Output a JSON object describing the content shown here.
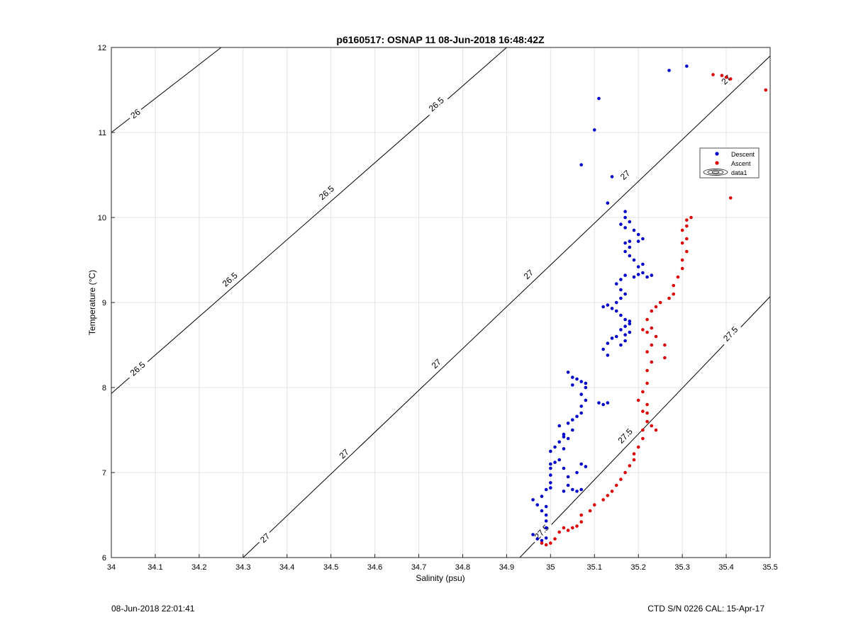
{
  "footer": {
    "left": "08-Jun-2018 22:01:41",
    "right": "CTD S/N 0226  CAL: 15-Apr-17"
  },
  "chart_data": {
    "type": "scatter",
    "title": "p6160517: OSNAP 11 08-Jun-2018 16:48:42Z",
    "xlabel": "Salinity (psu)",
    "ylabel": "Temperature (°C)",
    "xlim": [
      34,
      35.5
    ],
    "ylim": [
      6,
      12
    ],
    "xticks": [
      34,
      34.1,
      34.2,
      34.3,
      34.4,
      34.5,
      34.6,
      34.7,
      34.8,
      34.9,
      35,
      35.1,
      35.2,
      35.3,
      35.4,
      35.5
    ],
    "xtick_labels": [
      "34",
      "34.1",
      "34.2",
      "34.3",
      "34.4",
      "34.5",
      "34.6",
      "34.7",
      "34.8",
      "34.9",
      "35",
      "35.1",
      "35.2",
      "35.3",
      "35.4",
      "35.5"
    ],
    "yticks": [
      6,
      7,
      8,
      9,
      10,
      11,
      12
    ],
    "ytick_labels": [
      "6",
      "7",
      "8",
      "9",
      "10",
      "11",
      "12"
    ],
    "grid": true,
    "legend_position": "top-right",
    "legend": [
      {
        "label": "Descent",
        "color": "#0000cc",
        "marker": "dot"
      },
      {
        "label": "Ascent",
        "color": "#dd0000",
        "marker": "dot"
      },
      {
        "label": "data1",
        "color": "#000000",
        "marker": "contour"
      }
    ],
    "contours": [
      {
        "level": "26",
        "points": [
          [
            34.0,
            11.0
          ],
          [
            34.25,
            12.0
          ]
        ],
        "labels": [
          [
            34.055,
            11.22
          ]
        ]
      },
      {
        "level": "26.5",
        "points": [
          [
            34.0,
            7.93
          ],
          [
            34.9,
            12.0
          ]
        ],
        "labels": [
          [
            34.06,
            8.22
          ],
          [
            34.27,
            9.27
          ],
          [
            34.49,
            10.29
          ],
          [
            34.74,
            11.33
          ]
        ]
      },
      {
        "level": "27",
        "points": [
          [
            34.3,
            6.0
          ],
          [
            35.5,
            11.9
          ]
        ],
        "labels": [
          [
            34.35,
            6.23
          ],
          [
            34.53,
            7.22
          ],
          [
            34.74,
            8.28
          ],
          [
            34.95,
            9.33
          ],
          [
            35.17,
            10.5
          ],
          [
            35.4,
            11.62
          ]
        ]
      },
      {
        "level": "27.5",
        "points": [
          [
            34.93,
            6.0
          ],
          [
            35.5,
            9.07
          ]
        ],
        "labels": [
          [
            34.98,
            6.3
          ],
          [
            35.17,
            7.43
          ],
          [
            35.41,
            8.63
          ]
        ]
      }
    ],
    "series": [
      {
        "name": "Descent",
        "color": "#0000cc",
        "points": [
          [
            34.96,
            6.27
          ],
          [
            34.97,
            6.22
          ],
          [
            34.98,
            6.2
          ],
          [
            34.99,
            6.23
          ],
          [
            34.99,
            6.35
          ],
          [
            34.99,
            6.5
          ],
          [
            34.99,
            6.43
          ],
          [
            34.96,
            6.68
          ],
          [
            34.97,
            6.62
          ],
          [
            34.98,
            6.55
          ],
          [
            34.99,
            6.6
          ],
          [
            34.98,
            6.72
          ],
          [
            34.99,
            6.8
          ],
          [
            35.0,
            6.82
          ],
          [
            35.0,
            6.88
          ],
          [
            35.0,
            6.97
          ],
          [
            35.0,
            7.05
          ],
          [
            35.0,
            7.1
          ],
          [
            35.01,
            7.12
          ],
          [
            35.0,
            7.25
          ],
          [
            35.01,
            7.3
          ],
          [
            35.02,
            7.36
          ],
          [
            35.03,
            7.42
          ],
          [
            35.02,
            7.55
          ],
          [
            35.03,
            7.45
          ],
          [
            35.04,
            7.4
          ],
          [
            35.03,
            7.28
          ],
          [
            35.02,
            7.15
          ],
          [
            35.03,
            7.05
          ],
          [
            35.04,
            6.85
          ],
          [
            35.03,
            6.78
          ],
          [
            35.05,
            6.8
          ],
          [
            35.06,
            6.78
          ],
          [
            35.07,
            6.8
          ],
          [
            35.04,
            6.95
          ],
          [
            35.06,
            7.0
          ],
          [
            35.07,
            7.1
          ],
          [
            35.08,
            7.07
          ],
          [
            35.05,
            7.5
          ],
          [
            35.04,
            7.58
          ],
          [
            35.05,
            7.62
          ],
          [
            35.06,
            7.66
          ],
          [
            35.07,
            7.7
          ],
          [
            35.07,
            7.78
          ],
          [
            35.08,
            7.85
          ],
          [
            35.07,
            7.92
          ],
          [
            35.08,
            8.0
          ],
          [
            35.07,
            8.07
          ],
          [
            35.08,
            8.05
          ],
          [
            35.06,
            8.1
          ],
          [
            35.05,
            8.03
          ],
          [
            35.04,
            8.18
          ],
          [
            35.05,
            8.12
          ],
          [
            35.11,
            7.82
          ],
          [
            35.12,
            7.8
          ],
          [
            35.13,
            7.82
          ],
          [
            35.13,
            8.38
          ],
          [
            35.12,
            8.45
          ],
          [
            35.13,
            8.52
          ],
          [
            35.14,
            8.58
          ],
          [
            35.15,
            8.6
          ],
          [
            35.16,
            8.5
          ],
          [
            35.17,
            8.55
          ],
          [
            35.16,
            8.68
          ],
          [
            35.17,
            8.72
          ],
          [
            35.18,
            8.75
          ],
          [
            35.17,
            8.8
          ],
          [
            35.16,
            8.85
          ],
          [
            35.15,
            8.9
          ],
          [
            35.12,
            8.95
          ],
          [
            35.13,
            8.97
          ],
          [
            35.14,
            8.93
          ],
          [
            35.15,
            9.0
          ],
          [
            35.16,
            9.05
          ],
          [
            35.17,
            9.1
          ],
          [
            35.16,
            9.15
          ],
          [
            35.15,
            9.22
          ],
          [
            35.16,
            9.27
          ],
          [
            35.17,
            9.32
          ],
          [
            35.18,
            8.65
          ],
          [
            35.17,
            8.62
          ],
          [
            35.18,
            8.78
          ],
          [
            35.19,
            9.3
          ],
          [
            35.2,
            9.33
          ],
          [
            35.21,
            9.35
          ],
          [
            35.2,
            9.42
          ],
          [
            35.21,
            9.45
          ],
          [
            35.22,
            9.3
          ],
          [
            35.23,
            9.32
          ],
          [
            35.19,
            9.5
          ],
          [
            35.18,
            9.55
          ],
          [
            35.17,
            9.6
          ],
          [
            35.18,
            9.65
          ],
          [
            35.17,
            9.7
          ],
          [
            35.18,
            9.72
          ],
          [
            35.2,
            9.72
          ],
          [
            35.21,
            9.75
          ],
          [
            35.2,
            9.8
          ],
          [
            35.19,
            9.85
          ],
          [
            35.18,
            9.95
          ],
          [
            35.17,
            10.0
          ],
          [
            35.17,
            10.07
          ],
          [
            35.16,
            9.92
          ],
          [
            35.17,
            9.88
          ],
          [
            35.13,
            10.17
          ],
          [
            35.14,
            10.48
          ],
          [
            35.07,
            10.62
          ],
          [
            35.1,
            11.03
          ],
          [
            35.11,
            11.4
          ],
          [
            35.27,
            11.73
          ],
          [
            35.31,
            11.78
          ]
        ]
      },
      {
        "name": "Ascent",
        "color": "#dd0000",
        "points": [
          [
            34.98,
            6.17
          ],
          [
            34.99,
            6.15
          ],
          [
            35.0,
            6.17
          ],
          [
            35.01,
            6.22
          ],
          [
            35.02,
            6.3
          ],
          [
            35.03,
            6.35
          ],
          [
            35.04,
            6.32
          ],
          [
            35.05,
            6.35
          ],
          [
            35.06,
            6.37
          ],
          [
            35.07,
            6.42
          ],
          [
            35.07,
            6.5
          ],
          [
            35.09,
            6.55
          ],
          [
            35.1,
            6.62
          ],
          [
            35.12,
            6.68
          ],
          [
            35.13,
            6.73
          ],
          [
            35.14,
            6.78
          ],
          [
            35.15,
            6.85
          ],
          [
            35.16,
            6.92
          ],
          [
            35.17,
            7.0
          ],
          [
            35.18,
            7.08
          ],
          [
            35.19,
            7.15
          ],
          [
            35.19,
            7.22
          ],
          [
            35.2,
            7.3
          ],
          [
            35.21,
            7.4
          ],
          [
            35.21,
            7.5
          ],
          [
            35.22,
            7.6
          ],
          [
            35.22,
            7.7
          ],
          [
            35.22,
            7.8
          ],
          [
            35.23,
            7.55
          ],
          [
            35.24,
            7.5
          ],
          [
            35.21,
            7.72
          ],
          [
            35.2,
            7.85
          ],
          [
            35.21,
            7.95
          ],
          [
            35.22,
            8.05
          ],
          [
            35.22,
            8.2
          ],
          [
            35.23,
            8.3
          ],
          [
            35.22,
            8.42
          ],
          [
            35.23,
            8.5
          ],
          [
            35.24,
            8.6
          ],
          [
            35.23,
            8.7
          ],
          [
            35.22,
            8.8
          ],
          [
            35.23,
            8.9
          ],
          [
            35.24,
            8.95
          ],
          [
            35.25,
            9.0
          ],
          [
            35.26,
            8.5
          ],
          [
            35.26,
            8.35
          ],
          [
            35.27,
            9.05
          ],
          [
            35.28,
            9.1
          ],
          [
            35.28,
            9.2
          ],
          [
            35.29,
            9.3
          ],
          [
            35.3,
            9.4
          ],
          [
            35.3,
            9.5
          ],
          [
            35.31,
            9.6
          ],
          [
            35.3,
            9.7
          ],
          [
            35.31,
            9.75
          ],
          [
            35.3,
            9.85
          ],
          [
            35.31,
            9.9
          ],
          [
            35.31,
            9.97
          ],
          [
            35.32,
            10.0
          ],
          [
            35.22,
            8.65
          ],
          [
            35.21,
            8.68
          ],
          [
            35.37,
            11.68
          ],
          [
            35.39,
            11.67
          ],
          [
            35.4,
            11.65
          ],
          [
            35.41,
            11.63
          ],
          [
            35.49,
            11.5
          ],
          [
            35.41,
            10.23
          ]
        ]
      }
    ]
  }
}
